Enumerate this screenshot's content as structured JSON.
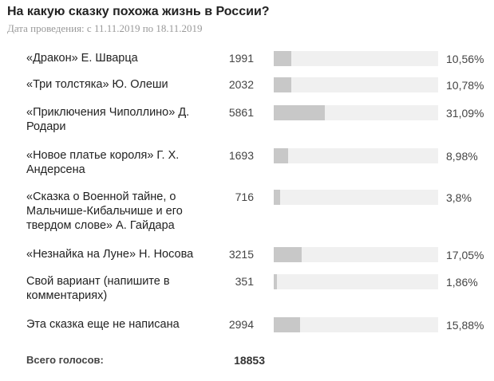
{
  "poll": {
    "title": "На какую сказку похожа жизнь в России?",
    "date": "Дата проведения: с 11.11.2019 по 18.11.2019",
    "total_label": "Всего голосов:",
    "total_value": "18853"
  },
  "chart_data": {
    "type": "bar",
    "orientation": "horizontal",
    "categories": [
      "«Дракон» Е. Шварца",
      "«Три толстяка» Ю. Олеши",
      "«Приключения Чиполлино» Д. Родари",
      "«Новое платье короля» Г. Х. Андерсена",
      "«Сказка о Военной тайне, о Мальчише-Кибальчише и его твердом слове» А. Гайдара",
      "«Незнайка на Луне» Н. Носова",
      "Свой вариант (напишите в комментариях)",
      "Эта сказка еще не написана"
    ],
    "counts": [
      1991,
      2032,
      5861,
      1693,
      716,
      3215,
      351,
      2994
    ],
    "percent_labels": [
      "10,56%",
      "10,78%",
      "31,09%",
      "8,98%",
      "3,8%",
      "17,05%",
      "1,86%",
      "15,88%"
    ],
    "values": [
      10.56,
      10.78,
      31.09,
      8.98,
      3.8,
      17.05,
      1.86,
      15.88
    ],
    "xlim": [
      0,
      100
    ],
    "colors": {
      "fill": "#c8c8c8",
      "track": "#f0f0f0"
    }
  }
}
